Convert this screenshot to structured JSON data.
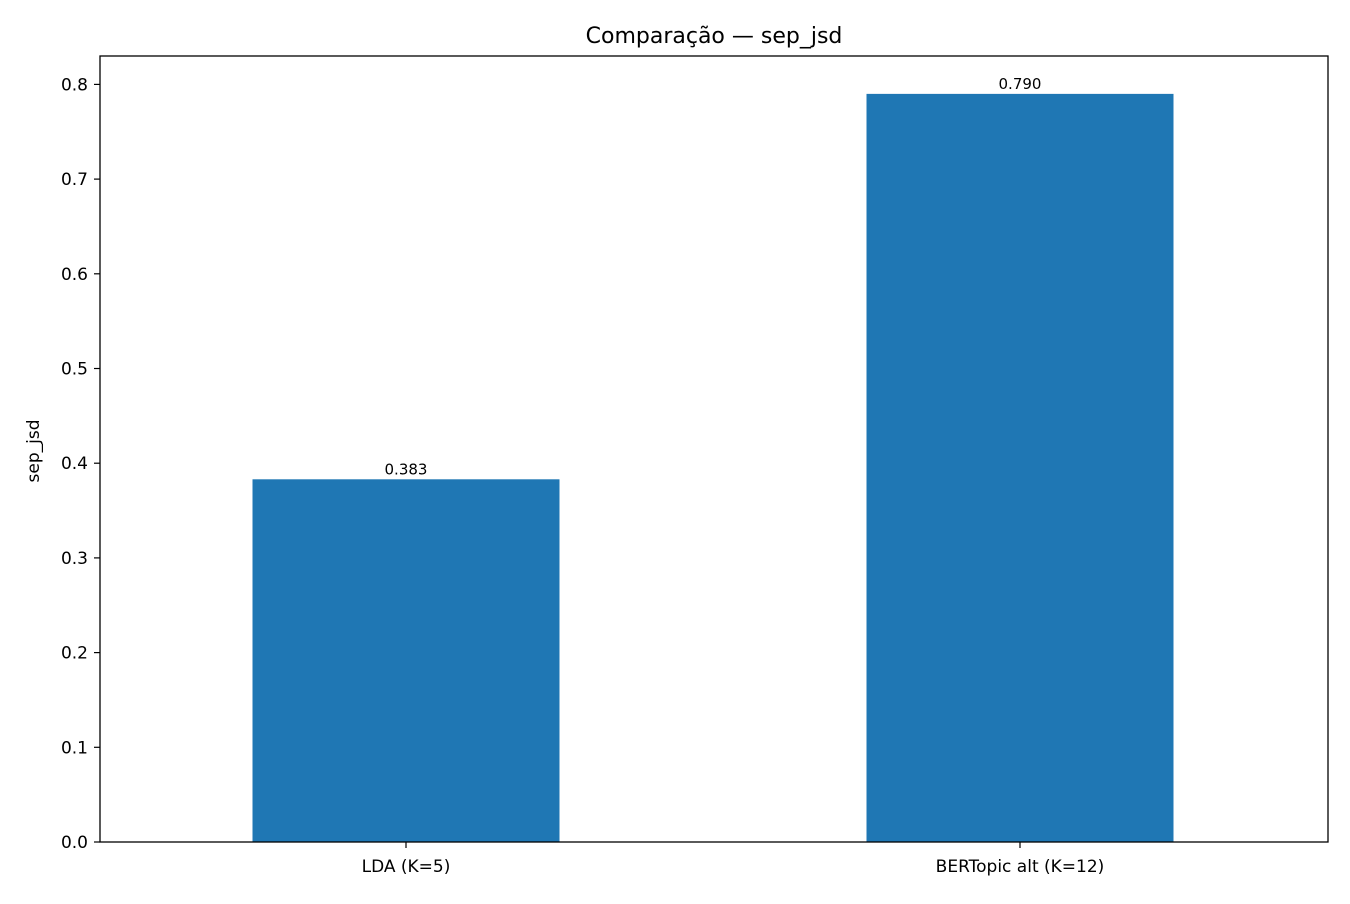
{
  "chart_data": {
    "type": "bar",
    "title": "Comparação — sep_jsd",
    "xlabel": "",
    "ylabel": "sep_jsd",
    "categories": [
      "LDA (K=5)",
      "BERTopic alt (K=12)"
    ],
    "values": [
      0.383,
      0.79
    ],
    "value_labels": [
      "0.383",
      "0.790"
    ],
    "ylim": [
      0.0,
      0.83
    ],
    "yticks": [
      0.0,
      0.1,
      0.2,
      0.3,
      0.4,
      0.5,
      0.6,
      0.7,
      0.8
    ],
    "ytick_labels": [
      "0.0",
      "0.1",
      "0.2",
      "0.3",
      "0.4",
      "0.5",
      "0.6",
      "0.7",
      "0.8"
    ],
    "bar_color": "#1f77b4",
    "grid": false,
    "legend": "none"
  }
}
